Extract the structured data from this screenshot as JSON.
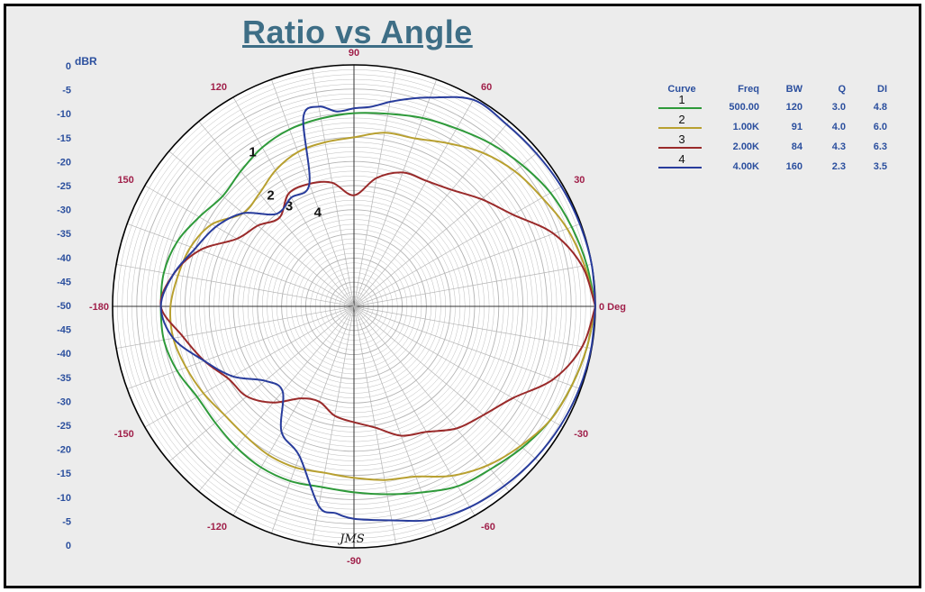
{
  "title": "Ratio vs Angle",
  "ylabel": "dBR",
  "signature": "JMS",
  "colors": {
    "grid": "#b4b4b4",
    "axis": "#000000",
    "plot_bg": "#ffffff",
    "angle_label": "#a0204a",
    "radial_label": "#2b4f9e"
  },
  "chart_data": {
    "type": "polar",
    "title": "Ratio vs Angle",
    "ylabel": "dBR",
    "radial_range": [
      -50,
      0
    ],
    "radial_unit": "dB",
    "angle_direction": "counter-clockwise, 0 at right",
    "radial_tick_labels": [
      "0",
      "-5",
      "-10",
      "-15",
      "-20",
      "-25",
      "-30",
      "-35",
      "-40",
      "-45",
      "-50",
      "-45",
      "-40",
      "-35",
      "-30",
      "-25",
      "-20",
      "-15",
      "-10",
      "-5",
      "0"
    ],
    "angle_tick_labels": [
      {
        "angle": 0,
        "label": "0 Deg"
      },
      {
        "angle": 30,
        "label": "30"
      },
      {
        "angle": 60,
        "label": "60"
      },
      {
        "angle": 90,
        "label": "90"
      },
      {
        "angle": 120,
        "label": "120"
      },
      {
        "angle": 150,
        "label": "150"
      },
      {
        "angle": 180,
        "label": "-180"
      },
      {
        "angle": -150,
        "label": "-150"
      },
      {
        "angle": -120,
        "label": "-120"
      },
      {
        "angle": -90,
        "label": "-90"
      },
      {
        "angle": -60,
        "label": "-60"
      },
      {
        "angle": -30,
        "label": "-30"
      }
    ],
    "grid": true,
    "legend_position": "top-right",
    "legend_headers": [
      "Curve",
      "Freq",
      "BW",
      "Q",
      "DI"
    ],
    "series": [
      {
        "name": "1",
        "color": "#2e9a3a",
        "freq": "500.00",
        "bw": "120",
        "q": "3.0",
        "di": "4.8",
        "label_angle": 124,
        "label_db": -12.5,
        "angles": [
          0,
          10,
          20,
          30,
          40,
          50,
          60,
          70,
          80,
          90,
          100,
          110,
          120,
          130,
          140,
          150,
          160,
          170,
          180,
          -170,
          -160,
          -150,
          -140,
          -130,
          -120,
          -110,
          -100,
          -90,
          -80,
          -70,
          -60,
          -50,
          -40,
          -30,
          -20,
          -10,
          0
        ],
        "values": [
          0,
          -1,
          -2,
          -3,
          -4.5,
          -6,
          -7.5,
          -8.5,
          -9.5,
          -10,
          -10.5,
          -11,
          -12,
          -13.5,
          -14.5,
          -13,
          -11,
          -10,
          -10,
          -10,
          -11,
          -12.5,
          -12.5,
          -12,
          -11.5,
          -11.5,
          -12,
          -11.5,
          -10.5,
          -9,
          -7,
          -6,
          -4.5,
          -3,
          -2,
          -1,
          0
        ]
      },
      {
        "name": "2",
        "color": "#b8a030",
        "freq": "1.00K",
        "bw": "91",
        "q": "4.0",
        "di": "6.0",
        "label_angle": 128,
        "label_db": -22,
        "angles": [
          0,
          10,
          20,
          30,
          40,
          50,
          60,
          70,
          80,
          90,
          100,
          110,
          120,
          130,
          140,
          150,
          160,
          170,
          180,
          -170,
          -160,
          -150,
          -140,
          -130,
          -120,
          -110,
          -100,
          -90,
          -80,
          -70,
          -60,
          -50,
          -40,
          -30,
          -20,
          -10,
          0
        ],
        "values": [
          0,
          -1.5,
          -3,
          -5,
          -6.5,
          -8.5,
          -11,
          -13,
          -13.5,
          -15,
          -15.5,
          -16,
          -17.5,
          -19.5,
          -20,
          -16,
          -14,
          -13,
          -12,
          -12,
          -13,
          -14,
          -15,
          -15,
          -14.5,
          -14.5,
          -15,
          -14.5,
          -13.5,
          -12.5,
          -9.5,
          -7,
          -5,
          -3,
          -2,
          -1,
          0
        ]
      },
      {
        "name": "3",
        "color": "#9a2a2a",
        "freq": "2.00K",
        "bw": "84",
        "q": "4.3",
        "di": "6.3",
        "label_angle": 124,
        "label_db": -26,
        "angles": [
          0,
          10,
          20,
          30,
          40,
          50,
          60,
          70,
          80,
          90,
          100,
          110,
          120,
          130,
          140,
          150,
          160,
          170,
          180,
          -170,
          -160,
          -150,
          -140,
          -130,
          -120,
          -110,
          -100,
          -90,
          -80,
          -70,
          -60,
          -50,
          -40,
          -30,
          -20,
          -10,
          0
        ],
        "values": [
          0,
          -2,
          -6,
          -12,
          -15.5,
          -18.5,
          -20,
          -20.5,
          -23,
          -27,
          -24,
          -23,
          -23,
          -26,
          -24,
          -22,
          -16,
          -12,
          -10,
          -14,
          -17,
          -20,
          -21,
          -24,
          -28,
          -29,
          -27,
          -26,
          -24.5,
          -21.5,
          -20,
          -17,
          -15,
          -12,
          -6,
          -2,
          0
        ]
      },
      {
        "name": "4",
        "color": "#283c9c",
        "freq": "4.00K",
        "bw": "160",
        "q": "2.3",
        "di": "3.5",
        "label_angle": 112,
        "label_db": -30,
        "angles": [
          0,
          10,
          20,
          30,
          40,
          50,
          60,
          70,
          75,
          80,
          85,
          90,
          95,
          100,
          105,
          110,
          120,
          130,
          140,
          150,
          160,
          170,
          180,
          -170,
          -160,
          -150,
          -140,
          -130,
          -120,
          -110,
          -100,
          -95,
          -90,
          -80,
          -70,
          -60,
          -50,
          -40,
          -30,
          -20,
          -10,
          0
        ],
        "values": [
          0,
          0,
          -0.2,
          -0.4,
          -0.7,
          -0.8,
          -0.6,
          -4,
          -5.5,
          -7,
          -8.5,
          -9,
          -9.5,
          -8,
          -9.5,
          -23,
          -24,
          -25,
          -20,
          -17,
          -15,
          -12,
          -10,
          -12,
          -17,
          -21,
          -26,
          -27,
          -20,
          -17,
          -8,
          -7,
          -6,
          -5,
          -3,
          -2,
          -1.5,
          -1,
          -0.6,
          -0.3,
          -0.1,
          0
        ]
      }
    ]
  }
}
